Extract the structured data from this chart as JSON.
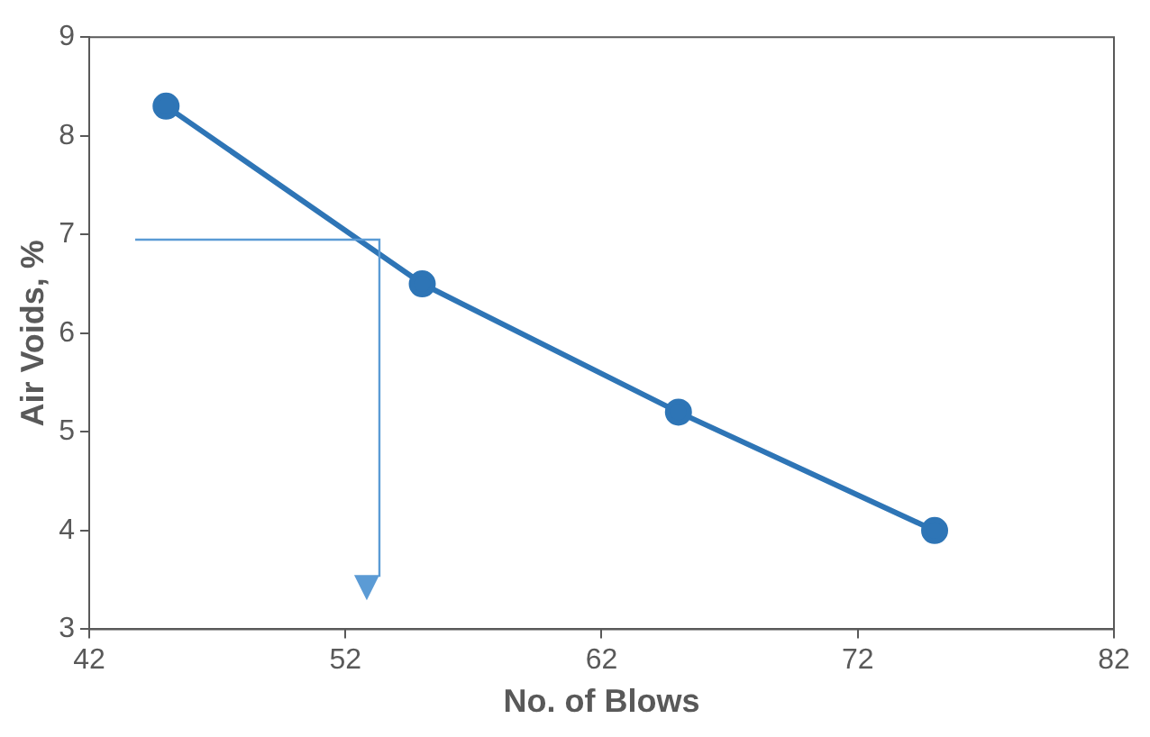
{
  "chart_data": {
    "type": "line",
    "xlabel": "No. of Blows",
    "ylabel": "Air Voids, %",
    "x": [
      45,
      55,
      65,
      75
    ],
    "series": [
      {
        "color": "#2e75b6",
        "values": [
          8.3,
          6.5,
          5.2,
          4.0
        ]
      }
    ],
    "xlim": [
      42,
      82
    ],
    "xticks": [
      42,
      52,
      62,
      72,
      82
    ],
    "ylim": [
      3,
      9
    ],
    "yticks": [
      3,
      4,
      5,
      6,
      7,
      8,
      9
    ],
    "grid": false,
    "legend": false,
    "marker": "circle",
    "line_style": "solid"
  }
}
